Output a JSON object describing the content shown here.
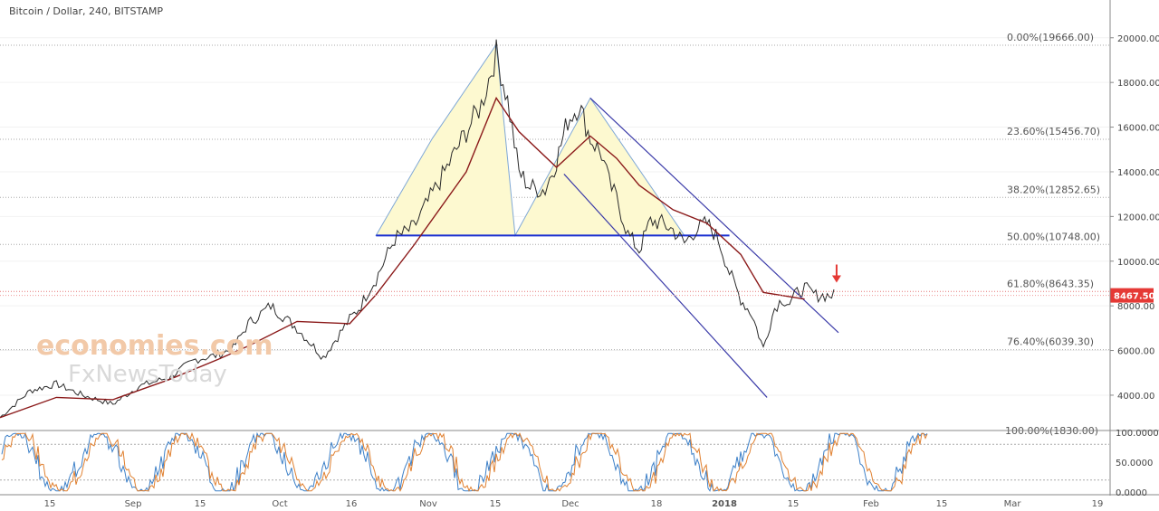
{
  "chart_data": {
    "type": "line",
    "title": "Bitcoin / Dollar, 240, BITSTAMP",
    "instrument": "Bitcoin / Dollar",
    "interval": "240",
    "exchange": "BITSTAMP",
    "last_price": "8467.50",
    "y_axis_labels": [
      "20000.00",
      "18000.00",
      "16000.00",
      "14000.00",
      "12000.00",
      "10000.00",
      "8000.00",
      "6000.00",
      "4000.00"
    ],
    "ylim": [
      2500,
      20800
    ],
    "x_axis_labels": [
      "15",
      "Sep",
      "15",
      "Oct",
      "16",
      "Nov",
      "15",
      "Dec",
      "18",
      "2018",
      "15",
      "Feb",
      "15",
      "Mar",
      "19"
    ],
    "fib_levels": [
      {
        "label": "0.00%(19666.00)",
        "value": 19666.0
      },
      {
        "label": "23.60%(15456.70)",
        "value": 15456.7
      },
      {
        "label": "38.20%(12852.65)",
        "value": 12852.65
      },
      {
        "label": "50.00%(10748.00)",
        "value": 10748.0
      },
      {
        "label": "61.80%(8643.35)",
        "value": 8643.35
      },
      {
        "label": "76.40%(6039.30)",
        "value": 6039.3
      },
      {
        "label": "100.00%(1830.00)",
        "value": 1830.0
      }
    ],
    "price_series": {
      "x_days": [
        0,
        8,
        15,
        22,
        30,
        37,
        45,
        52,
        58,
        62,
        66,
        72,
        79,
        86,
        93,
        96,
        98,
        100,
        105,
        110,
        117,
        124,
        128,
        132,
        135,
        138,
        141,
        145,
        148,
        151,
        154,
        157,
        160,
        162,
        164,
        167,
        170,
        173,
        176,
        179,
        182,
        185,
        188,
        191,
        194,
        197,
        200,
        203,
        206,
        208,
        210,
        212,
        214,
        217,
        220,
        223,
        226,
        230,
        234,
        237,
        240
      ],
      "close": [
        3000,
        4200,
        4500,
        4000,
        3600,
        4400,
        4800,
        5600,
        5800,
        6100,
        7200,
        8000,
        7000,
        5700,
        7400,
        8000,
        8700,
        9200,
        11000,
        11500,
        13600,
        15800,
        17000,
        19300,
        17200,
        14000,
        13300,
        13200,
        14500,
        16300,
        17000,
        15500,
        14800,
        13500,
        12800,
        11200,
        10500,
        11800,
        11700,
        11400,
        10800,
        11400,
        11700,
        11000,
        9500,
        8300,
        7600,
        6100,
        7900,
        8300,
        8100,
        8600,
        8800,
        8467,
        8467,
        8467,
        8467,
        8467,
        8467,
        8467,
        8467
      ]
    },
    "moving_average": {
      "x_days": [
        0,
        15,
        30,
        45,
        58,
        66,
        79,
        93,
        100,
        110,
        124,
        132,
        138,
        148,
        157,
        164,
        170,
        179,
        188,
        197,
        203,
        214
      ],
      "values": [
        3000,
        3900,
        3800,
        4700,
        5600,
        6200,
        7300,
        7200,
        8500,
        10700,
        14000,
        17300,
        15800,
        14200,
        15600,
        14600,
        13400,
        12300,
        11700,
        10300,
        8600,
        8300
      ]
    },
    "trend_lines": [
      {
        "name": "neckline",
        "color": "#1a2fd1",
        "points": [
          [
            100,
            11150
          ],
          [
            194,
            11150
          ]
        ]
      },
      {
        "name": "upper_channel",
        "color": "#3a3aa8",
        "points": [
          [
            157,
            17300
          ],
          [
            223,
            6800
          ]
        ]
      },
      {
        "name": "lower_channel",
        "color": "#3a3aa8",
        "points": [
          [
            150,
            13900
          ],
          [
            204,
            3900
          ]
        ]
      }
    ],
    "head_and_shoulders_outline": [
      [
        100,
        11150
      ],
      [
        115,
        15500
      ],
      [
        132,
        19700
      ],
      [
        137,
        11150
      ],
      [
        157,
        17300
      ],
      [
        182,
        11150
      ]
    ],
    "oscillator": {
      "y_axis_labels": [
        "100.0000",
        "50.0000",
        "0.0000"
      ],
      "ylim": [
        0,
        100
      ],
      "levels": [
        80,
        20
      ]
    },
    "colors": {
      "price": "#2a2a2a",
      "moving_average": "#8b1a1a",
      "shape_fill": "#fdf9d0",
      "last_price_tag": "#e53935",
      "arrow": "#e53935",
      "oscillator_a": "#3d80c8",
      "oscillator_b": "#e08030"
    },
    "grid": true
  },
  "watermark": {
    "line1": "economies.com",
    "line2": "FxNewsToday"
  }
}
